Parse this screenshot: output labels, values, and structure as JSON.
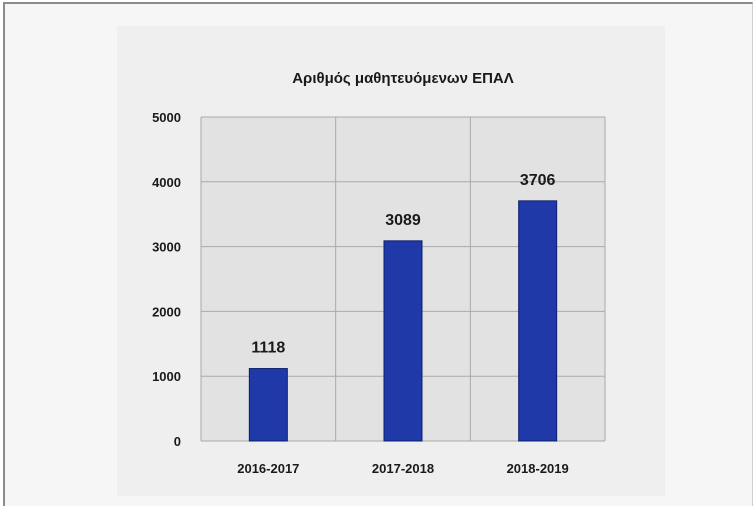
{
  "chart_data": {
    "type": "bar",
    "title": "Αριθμός μαθητευόμενων ΕΠΑΛ",
    "xlabel": "",
    "ylabel": "",
    "categories": [
      "2016-2017",
      "2017-2018",
      "2018-2019"
    ],
    "values": [
      1118,
      3089,
      3706
    ],
    "data_labels": [
      "1118",
      "3089",
      "3706"
    ],
    "yticks": [
      0,
      1000,
      2000,
      3000,
      4000,
      5000
    ],
    "ylim": [
      0,
      5000
    ],
    "grid": true,
    "legend": "none"
  },
  "colors": {
    "bar": "#1f3aa8",
    "bar_edge": "#0e1f6e",
    "plot_background": "#e2e2e2",
    "gridline": "#aaaaaa"
  }
}
